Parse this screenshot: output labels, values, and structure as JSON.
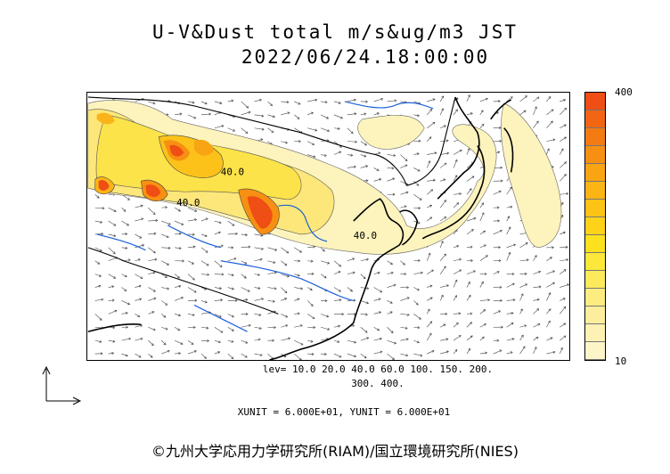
{
  "title": {
    "line1": "U-V&Dust total m/s&ug/m3 JST",
    "line2": "2022/06/24.18:00:00"
  },
  "colorbar": {
    "max_label": "400",
    "min_label": "10",
    "colors": [
      "#fdf5c8",
      "#fdf1b4",
      "#fdee9e",
      "#fdec7f",
      "#fde95c",
      "#fce83a",
      "#fde01e",
      "#fdd219",
      "#fdc416",
      "#fbb514",
      "#f9a412",
      "#f79012",
      "#f47b12",
      "#f26512",
      "#ef4e14"
    ]
  },
  "contour_labels": [
    "40.0",
    "40.0",
    "40.0"
  ],
  "legend": {
    "lev_line1": "lev= 10.0 20.0 40.0 60.0 100. 150. 200.",
    "lev_line2": "300. 400.",
    "units": "XUNIT = 6.000E+01, YUNIT = 6.000E+01"
  },
  "credit": "©九州大学応用力学研究所(RIAM)/国立環境研究所(NIES)",
  "colors": {
    "coast": "#000000",
    "rivers": "#1a5fd6",
    "dust_low": "#fdf5c8",
    "dust_mid": "#fde95c",
    "dust_high": "#f47b12",
    "dust_peak": "#ef4e14"
  }
}
